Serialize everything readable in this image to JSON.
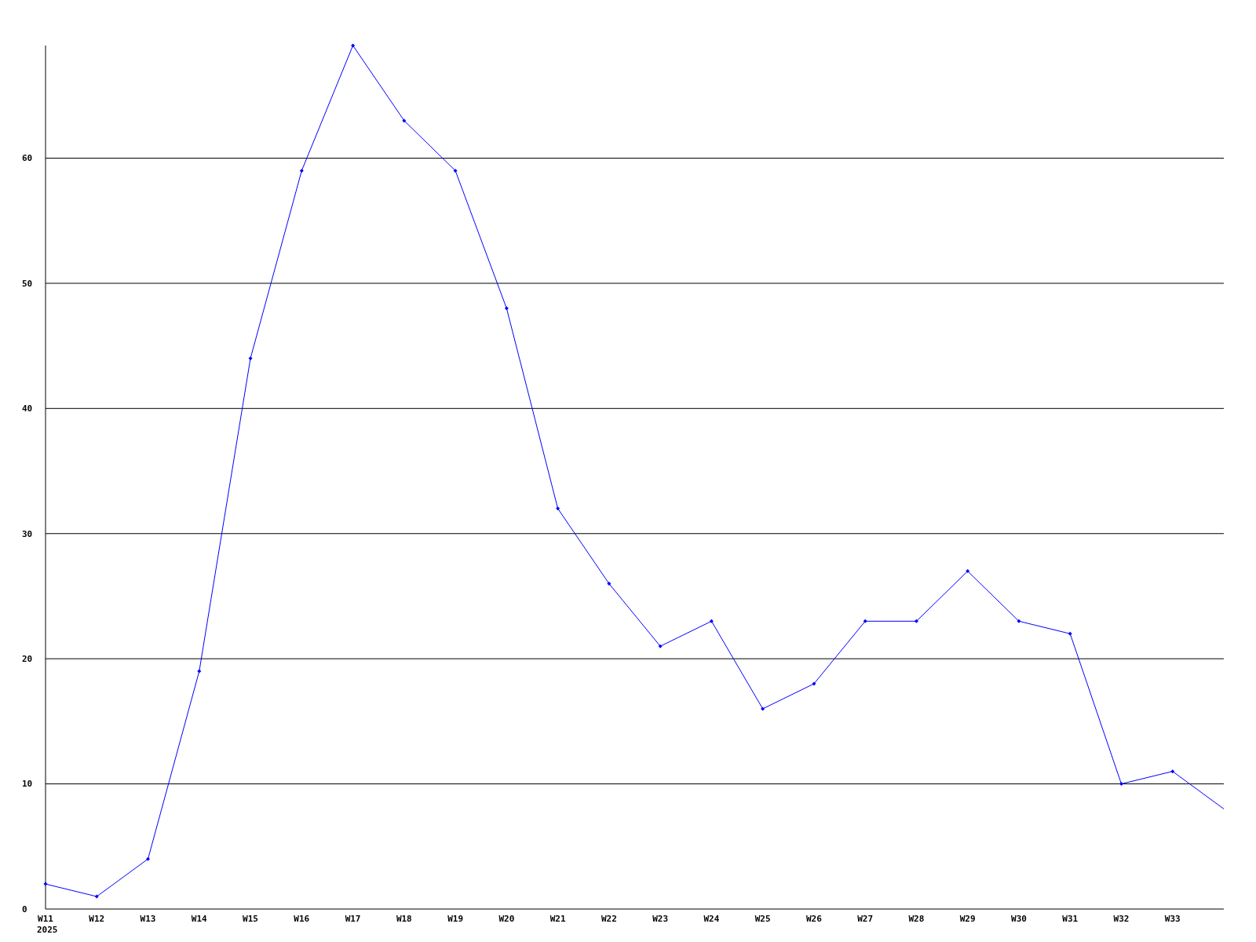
{
  "chart_data": {
    "type": "line",
    "categories": [
      "W11",
      "W12",
      "W13",
      "W14",
      "W15",
      "W16",
      "W17",
      "W18",
      "W19",
      "W20",
      "W21",
      "W22",
      "W23",
      "W24",
      "W25",
      "W26",
      "W27",
      "W28",
      "W29",
      "W30",
      "W31",
      "W32",
      "W33",
      null
    ],
    "series": [
      {
        "color": "#0000ff",
        "values": [
          2,
          1,
          4,
          19,
          44,
          59,
          69,
          63,
          59,
          48,
          32,
          26,
          21,
          23,
          16,
          18,
          23,
          23,
          27,
          23,
          22,
          10,
          11,
          8
        ]
      }
    ],
    "ylim": [
      0,
      69
    ],
    "yticks": [
      0,
      10,
      20,
      30,
      40,
      50,
      60
    ],
    "grid": "y",
    "marker": "diamond",
    "line_style": "solid",
    "annotations": [
      "2025"
    ]
  }
}
